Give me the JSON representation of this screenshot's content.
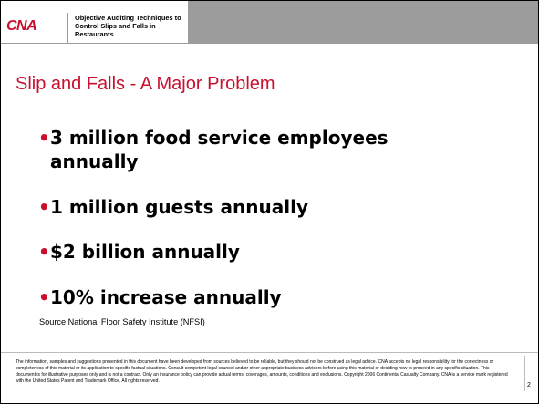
{
  "header": {
    "logo_text": "CNA",
    "title": "Objective Auditing Techniques to Control Slips and Falls in Restaurants"
  },
  "slide": {
    "title": "Slip and Falls - A Major Problem",
    "bullet_marker": "•",
    "bullets": [
      "3 million food service employees",
      "annually",
      "1 million guests annually",
      "$2 billion annually",
      "10% increase annually"
    ],
    "source": "Source National Floor Safety Institute (NFSI)"
  },
  "footer": {
    "disclaimer": "The information, samples and suggestions presented in this document have been developed from sources believed to be reliable, but they should not be construed as legal advice. CNA accepts no legal responsibility for the correctness or completeness of this material or its application to specific factual situations. Consult competent legal counsel and/or other appropriate business advisors before using this material or deciding how to proceed in any specific situation. This document is for illustrative purposes only and is not a contract. Only an insurance policy can provide actual terms, coverages, amounts, conditions and exclusions. Copyright 2006 Continental Casualty Company. CNA is a service mark registered with the United States Patent and Trademark Office. All rights reserved.",
    "page_number": "2"
  },
  "colors": {
    "brand_red": "#c8102e",
    "header_gray": "#9c9c9c"
  }
}
